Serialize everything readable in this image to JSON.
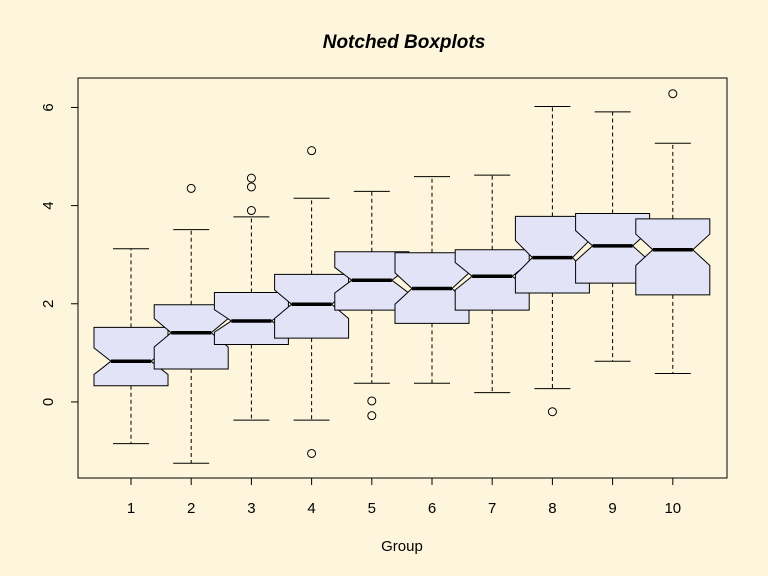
{
  "chart_data": {
    "type": "boxplot",
    "notched": true,
    "title": "Notched Boxplots",
    "xlabel": "Group",
    "ylabel": "",
    "ylim": [
      -1.55,
      6.6
    ],
    "y_ticks": [
      0,
      2,
      4,
      6
    ],
    "categories": [
      "1",
      "2",
      "3",
      "4",
      "5",
      "6",
      "7",
      "8",
      "9",
      "10"
    ],
    "grid": false,
    "legend": "none",
    "colors": {
      "background": "#fdf6dc",
      "box_fill": "#e3e3f8",
      "stroke": "#000000"
    },
    "boxes": [
      {
        "group": "1",
        "whisker_low": -0.85,
        "q1": 0.33,
        "median": 0.83,
        "q3": 1.52,
        "whisker_high": 3.12,
        "notch_low": 0.56,
        "notch_high": 1.1,
        "outliers": []
      },
      {
        "group": "2",
        "whisker_low": -1.25,
        "q1": 0.67,
        "median": 1.41,
        "q3": 1.98,
        "whisker_high": 3.51,
        "notch_low": 1.12,
        "notch_high": 1.7,
        "outliers": [
          4.35
        ]
      },
      {
        "group": "3",
        "whisker_low": -0.37,
        "q1": 1.17,
        "median": 1.65,
        "q3": 2.23,
        "whisker_high": 3.77,
        "notch_low": 1.42,
        "notch_high": 1.88,
        "outliers": [
          3.9,
          4.38,
          4.56
        ]
      },
      {
        "group": "4",
        "whisker_low": -0.37,
        "q1": 1.3,
        "median": 1.99,
        "q3": 2.6,
        "whisker_high": 4.15,
        "notch_low": 1.7,
        "notch_high": 2.28,
        "outliers": [
          5.12,
          -1.05
        ]
      },
      {
        "group": "5",
        "whisker_low": 0.38,
        "q1": 1.87,
        "median": 2.48,
        "q3": 3.06,
        "whisker_high": 4.29,
        "notch_low": 2.22,
        "notch_high": 2.74,
        "outliers": [
          0.02,
          -0.28
        ]
      },
      {
        "group": "6",
        "whisker_low": 0.38,
        "q1": 1.6,
        "median": 2.31,
        "q3": 3.04,
        "whisker_high": 4.59,
        "notch_low": 1.99,
        "notch_high": 2.63,
        "outliers": []
      },
      {
        "group": "7",
        "whisker_low": 0.19,
        "q1": 1.87,
        "median": 2.56,
        "q3": 3.1,
        "whisker_high": 4.62,
        "notch_low": 2.28,
        "notch_high": 2.84,
        "outliers": []
      },
      {
        "group": "8",
        "whisker_low": 0.27,
        "q1": 2.22,
        "median": 2.94,
        "q3": 3.78,
        "whisker_high": 6.02,
        "notch_low": 2.59,
        "notch_high": 3.29,
        "outliers": [
          -0.2
        ]
      },
      {
        "group": "9",
        "whisker_low": 0.83,
        "q1": 2.42,
        "median": 3.18,
        "q3": 3.84,
        "whisker_high": 5.91,
        "notch_low": 2.87,
        "notch_high": 3.49,
        "outliers": []
      },
      {
        "group": "10",
        "whisker_low": 0.58,
        "q1": 2.18,
        "median": 3.1,
        "q3": 3.73,
        "whisker_high": 5.27,
        "notch_low": 2.78,
        "notch_high": 3.42,
        "outliers": [
          6.28
        ]
      }
    ]
  }
}
